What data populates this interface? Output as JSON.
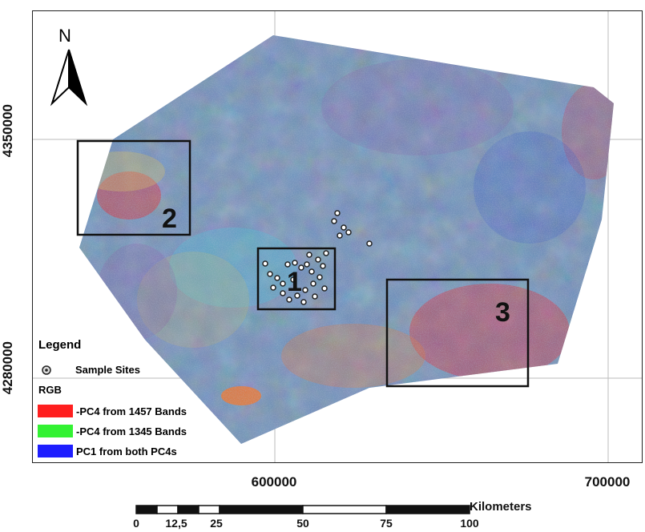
{
  "map": {
    "north_label": "N",
    "grid": {
      "y_ticks": [
        "4350000",
        "4280000"
      ],
      "x_ticks": [
        "600000",
        "700000"
      ]
    },
    "boxes": [
      {
        "label": "1"
      },
      {
        "label": "2"
      },
      {
        "label": "3"
      }
    ]
  },
  "legend": {
    "title": "Legend",
    "sample_sites_label": "Sample Sites",
    "rgb_title": "RGB",
    "entries": [
      {
        "label": "-PC4 from 1457 Bands",
        "color": "#ff1f1f"
      },
      {
        "label": "-PC4 from 1345 Bands",
        "color": "#33f233"
      },
      {
        "label": "PC1 from both  PC4s",
        "color": "#1e1eff"
      }
    ]
  },
  "scale": {
    "ticks": [
      "0",
      "12,5",
      "25",
      "50",
      "75",
      "100"
    ],
    "unit": "Kilometers"
  },
  "colors": {
    "base": "#6f8fb8",
    "red": "#e0303a",
    "cyan": "#4fc0d8",
    "orange": "#e87a3a",
    "yellow": "#d8c060",
    "purple": "#8a5aa8"
  }
}
